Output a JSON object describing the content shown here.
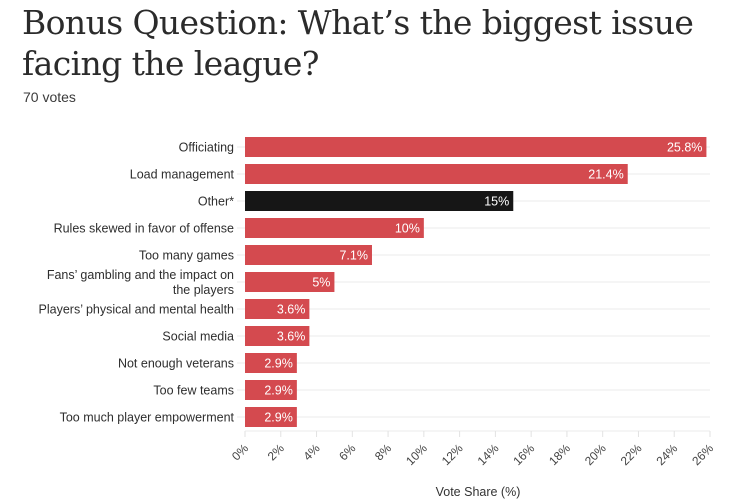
{
  "header": {
    "title": "Bonus Question: What’s the biggest issue facing the league?",
    "subtitle": "70 votes"
  },
  "colors": {
    "default_bar": "#d44a4f",
    "highlight_bar": "#161616",
    "gridline": "#ebebeb",
    "value_text": "#ffffff"
  },
  "chart_data": {
    "type": "bar",
    "orientation": "horizontal",
    "title": "Bonus Question: What’s the biggest issue facing the league?",
    "subtitle": "70 votes",
    "xlabel": "Vote Share (%)",
    "ylabel": "",
    "xlim": [
      0,
      26
    ],
    "x_ticks": [
      0,
      2,
      4,
      6,
      8,
      10,
      12,
      14,
      16,
      18,
      20,
      22,
      24,
      26
    ],
    "x_tick_labels": [
      "0%",
      "2%",
      "4%",
      "6%",
      "8%",
      "10%",
      "12%",
      "14%",
      "16%",
      "18%",
      "20%",
      "22%",
      "24%",
      "26%"
    ],
    "grid": true,
    "legend": "none",
    "categories": [
      "Officiating",
      "Load management",
      "Other*",
      "Rules skewed in favor of offense",
      "Too many games",
      "Fans’ gambling and the impact on the players",
      "Players’ physical and mental health",
      "Social media",
      "Not enough veterans",
      "Too few teams",
      "Too much player empowerment"
    ],
    "category_label_lines": [
      [
        "Officiating"
      ],
      [
        "Load management"
      ],
      [
        "Other*"
      ],
      [
        "Rules skewed in favor of offense"
      ],
      [
        "Too many games"
      ],
      [
        "Fans’ gambling and the impact on",
        "the players"
      ],
      [
        "Players’ physical and mental health"
      ],
      [
        "Social media"
      ],
      [
        "Not enough veterans"
      ],
      [
        "Too few teams"
      ],
      [
        "Too much player empowerment"
      ]
    ],
    "values": [
      25.8,
      21.4,
      15,
      10,
      7.1,
      5,
      3.6,
      3.6,
      2.9,
      2.9,
      2.9
    ],
    "value_labels": [
      "25.8%",
      "21.4%",
      "15%",
      "10%",
      "7.1%",
      "5%",
      "3.6%",
      "3.6%",
      "2.9%",
      "2.9%",
      "2.9%"
    ],
    "highlighted": [
      "Other*"
    ]
  }
}
